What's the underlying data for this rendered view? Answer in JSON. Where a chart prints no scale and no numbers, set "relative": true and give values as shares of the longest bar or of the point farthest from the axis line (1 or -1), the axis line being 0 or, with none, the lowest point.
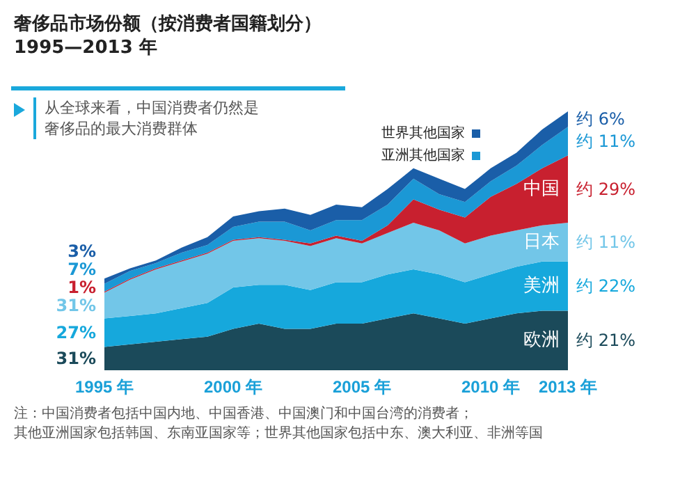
{
  "chart_data": {
    "type": "area",
    "title": "奢侈品市场份额（按消费者国籍划分）1995—2013 年",
    "subtitle": "从全球来看，中国消费者仍然是奢侈品的最大消费群体",
    "relative": true,
    "legend": "top right",
    "stacked": true,
    "categories": [
      "1995 年",
      null,
      null,
      null,
      null,
      "2000 年",
      null,
      null,
      null,
      null,
      "2005 年",
      null,
      null,
      null,
      null,
      "2010 年",
      null,
      null,
      "2013 年"
    ],
    "series": [
      {
        "name": "欧洲",
        "color": "#1b4a5a",
        "values": [
          0.09,
          0.1,
          0.11,
          0.12,
          0.13,
          0.16,
          0.18,
          0.16,
          0.16,
          0.18,
          0.18,
          0.2,
          0.22,
          0.2,
          0.18,
          0.2,
          0.22,
          0.23,
          0.23
        ]
      },
      {
        "name": "美洲",
        "color": "#16a8dc",
        "values": [
          0.11,
          0.11,
          0.11,
          0.12,
          0.13,
          0.16,
          0.15,
          0.17,
          0.15,
          0.16,
          0.16,
          0.17,
          0.17,
          0.17,
          0.16,
          0.17,
          0.18,
          0.19,
          0.19
        ]
      },
      {
        "name": "日本",
        "color": "#72c6e8",
        "values": [
          0.1,
          0.14,
          0.17,
          0.18,
          0.19,
          0.18,
          0.18,
          0.17,
          0.17,
          0.17,
          0.15,
          0.16,
          0.18,
          0.17,
          0.15,
          0.15,
          0.14,
          0.14,
          0.15
        ]
      },
      {
        "name": "中国",
        "color": "#c8202f",
        "values": [
          0.004,
          0.004,
          0.004,
          0.004,
          0.004,
          0.004,
          0.004,
          0.004,
          0.01,
          0.01,
          0.01,
          0.03,
          0.09,
          0.08,
          0.1,
          0.15,
          0.18,
          0.22,
          0.26
        ]
      },
      {
        "name": "亚洲其他国家",
        "color": "#1b98d5",
        "values": [
          0.03,
          0.03,
          0.02,
          0.03,
          0.03,
          0.05,
          0.06,
          0.07,
          0.05,
          0.06,
          0.08,
          0.08,
          0.08,
          0.06,
          0.06,
          0.06,
          0.07,
          0.09,
          0.11
        ]
      },
      {
        "name": "世界其他国家",
        "color": "#1a5ea8",
        "values": [
          0.02,
          0.01,
          0.01,
          0.02,
          0.03,
          0.04,
          0.04,
          0.05,
          0.06,
          0.06,
          0.05,
          0.06,
          0.04,
          0.06,
          0.05,
          0.05,
          0.05,
          0.06,
          0.06
        ]
      }
    ],
    "annotations": [
      {
        "text": "31%",
        "x": "1995 年",
        "y": 0.045
      },
      {
        "text": "27%",
        "x": "1995 年",
        "y": 0.145
      },
      {
        "text": "31%",
        "x": "1995 年",
        "y": 0.25
      },
      {
        "text": "1%",
        "x": "1995 年",
        "y": 0.302
      },
      {
        "text": "7%",
        "x": "1995 年",
        "y": 0.32
      },
      {
        "text": "3%",
        "x": "1995 年",
        "y": 0.344
      },
      {
        "text": "约 21%",
        "x": "2013 年",
        "y": 0.115
      },
      {
        "text": "约 22%",
        "x": "2013 年",
        "y": 0.325
      },
      {
        "text": "约 11%",
        "x": "2013 年",
        "y": 0.495
      },
      {
        "text": "约 29%",
        "x": "2013 年",
        "y": 0.7
      },
      {
        "text": "约 11%",
        "x": "2013 年",
        "y": 0.885
      },
      {
        "text": "约 6%",
        "x": "2013 年",
        "y": 0.97
      },
      "注：中国消费者包括中国内地、中国香港、中国澳门和中国台湾的消费者；",
      "其他亚洲国家包括韩国、东南亚国家等；世界其他国家包括中东、澳大利亚、非洲等国"
    ]
  }
}
